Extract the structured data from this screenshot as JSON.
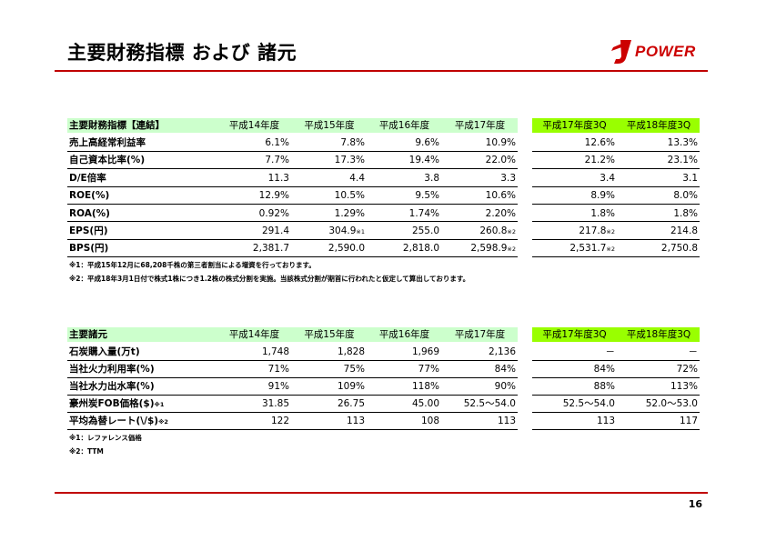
{
  "header": {
    "title": "主要財務指標 および 諸元",
    "logo_text": "POWER",
    "accent_color": "#c00000"
  },
  "financial": {
    "columns": [
      "主要財務指標【連結】",
      "平成14年度",
      "平成15年度",
      "平成16年度",
      "平成17年度",
      "平成17年度3Q",
      "平成18年度3Q"
    ],
    "rows": [
      {
        "label": "売上高経常利益率",
        "values": [
          "6.1%",
          "7.8%",
          "9.6%",
          "10.9%",
          "12.6%",
          "13.3%"
        ]
      },
      {
        "label": "自己資本比率(%)",
        "values": [
          "7.7%",
          "17.3%",
          "19.4%",
          "22.0%",
          "21.2%",
          "23.1%"
        ]
      },
      {
        "label": "D/E倍率",
        "values": [
          "11.3",
          "4.4",
          "3.8",
          "3.3",
          "3.4",
          "3.1"
        ]
      },
      {
        "label": "ROE(%)",
        "values": [
          "12.9%",
          "10.5%",
          "9.5%",
          "10.6%",
          "8.9%",
          "8.0%"
        ]
      },
      {
        "label": "ROA(%)",
        "values": [
          "0.92%",
          "1.29%",
          "1.74%",
          "2.20%",
          "1.8%",
          "1.8%"
        ]
      },
      {
        "label": "EPS(円)",
        "values": [
          "291.4",
          "304.9",
          "255.0",
          "260.8",
          "217.8",
          "214.8"
        ],
        "notes": [
          "",
          "※1",
          "",
          "※2",
          "※2",
          ""
        ]
      },
      {
        "label": "BPS(円)",
        "values": [
          "2,381.7",
          "2,590.0",
          "2,818.0",
          "2,598.9",
          "2,531.7",
          "2,750.8"
        ],
        "notes": [
          "",
          "",
          "",
          "※2",
          "※2",
          ""
        ]
      }
    ],
    "footnotes": [
      "※1：平成15年12月に68,208千株の第三者割当による増資を行っております。",
      "※2：平成18年3月1日付で株式1株につき1.2株の株式分割を実施。当該株式分割が期首に行われたと仮定して算出しております。"
    ]
  },
  "specs": {
    "columns": [
      "主要諸元",
      "平成14年度",
      "平成15年度",
      "平成16年度",
      "平成17年度",
      "平成17年度3Q",
      "平成18年度3Q"
    ],
    "rows": [
      {
        "label": "石炭購入量(万t)",
        "values": [
          "1,748",
          "1,828",
          "1,969",
          "2,136",
          "－",
          "－"
        ]
      },
      {
        "label": "当社火力利用率(%)",
        "values": [
          "71%",
          "75%",
          "77%",
          "84%",
          "84%",
          "72%"
        ]
      },
      {
        "label": "当社水力出水率(%)",
        "values": [
          "91%",
          "109%",
          "118%",
          "90%",
          "88%",
          "113%"
        ]
      },
      {
        "label": "豪州炭FOB価格($)",
        "label_note": "※1",
        "values": [
          "31.85",
          "26.75",
          "45.00",
          "52.5～54.0",
          "52.5～54.0",
          "52.0～53.0"
        ]
      },
      {
        "label": "平均為替レート(\\/$)",
        "label_note": "※2",
        "values": [
          "122",
          "113",
          "108",
          "113",
          "113",
          "117"
        ]
      }
    ],
    "footnotes": [
      "※1：レファレンス価格",
      "※2：TTM"
    ]
  },
  "page_number": "16"
}
